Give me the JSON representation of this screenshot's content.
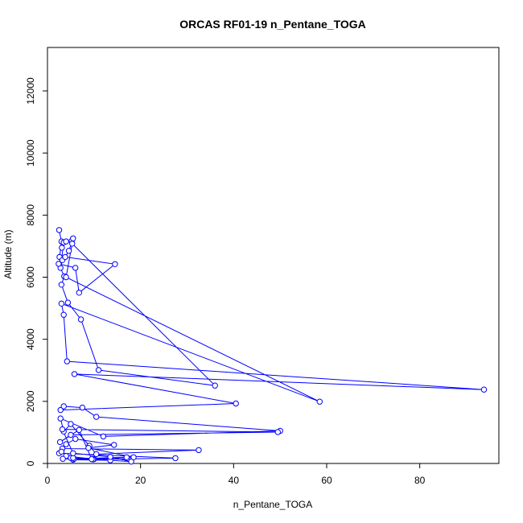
{
  "chart_data": {
    "type": "line",
    "title": "ORCAS RF01-19 n_Pentane_TOGA",
    "xlabel": "n_Pentane_TOGA",
    "ylabel": "Altitude (m)",
    "xlim": [
      0,
      97
    ],
    "ylim": [
      0,
      13400
    ],
    "x_ticks": [
      0,
      20,
      40,
      60,
      80
    ],
    "y_ticks": [
      0,
      2000,
      4000,
      6000,
      8000,
      10000,
      12000
    ],
    "grid": false,
    "marker": "open-circle",
    "line_color": "#0000ff",
    "series": [
      {
        "x": [
          2.5,
          3.0,
          2.6,
          3.2,
          2.8,
          3.5,
          3.1,
          4.0,
          5.2,
          5.5,
          4.6,
          3.8,
          14.5,
          6.8,
          6.0,
          2.4,
          3.6,
          3.0,
          4.4,
          7.2,
          11.0,
          36.0,
          5.3,
          4.0,
          58.5,
          3.0,
          3.5,
          4.2,
          93.8,
          5.8,
          40.5,
          2.8,
          3.5,
          7.5,
          10.5,
          50.0,
          12.0,
          2.8,
          3.5,
          5.0,
          9.0,
          10.5,
          32.5,
          3.2,
          4.0,
          6.0,
          14.3,
          8.8,
          18.5,
          5.5,
          13.5,
          5.0,
          4.0,
          10.0,
          17.0,
          5.7,
          9.8,
          27.5,
          2.5,
          3.0,
          5.5,
          18.0,
          13.5,
          5.5,
          3.2,
          49.5,
          5.0,
          2.7,
          6.8,
          9.5,
          3.3
        ],
        "y": [
          7520,
          7150,
          6650,
          6550,
          6300,
          7120,
          6950,
          7150,
          7170,
          7250,
          6850,
          6650,
          6420,
          5500,
          6300,
          6430,
          6030,
          5760,
          5180,
          4640,
          3010,
          2510,
          7080,
          6000,
          1990,
          5150,
          4790,
          3290,
          2380,
          2880,
          1930,
          1720,
          1840,
          1800,
          1500,
          1050,
          870,
          1450,
          1030,
          1270,
          570,
          300,
          430,
          480,
          620,
          790,
          600,
          500,
          200,
          120,
          100,
          180,
          240,
          140,
          200,
          150,
          130,
          170,
          330,
          380,
          180,
          60,
          210,
          330,
          1100,
          1010,
          920,
          690,
          1080,
          140,
          150
        ]
      }
    ]
  }
}
